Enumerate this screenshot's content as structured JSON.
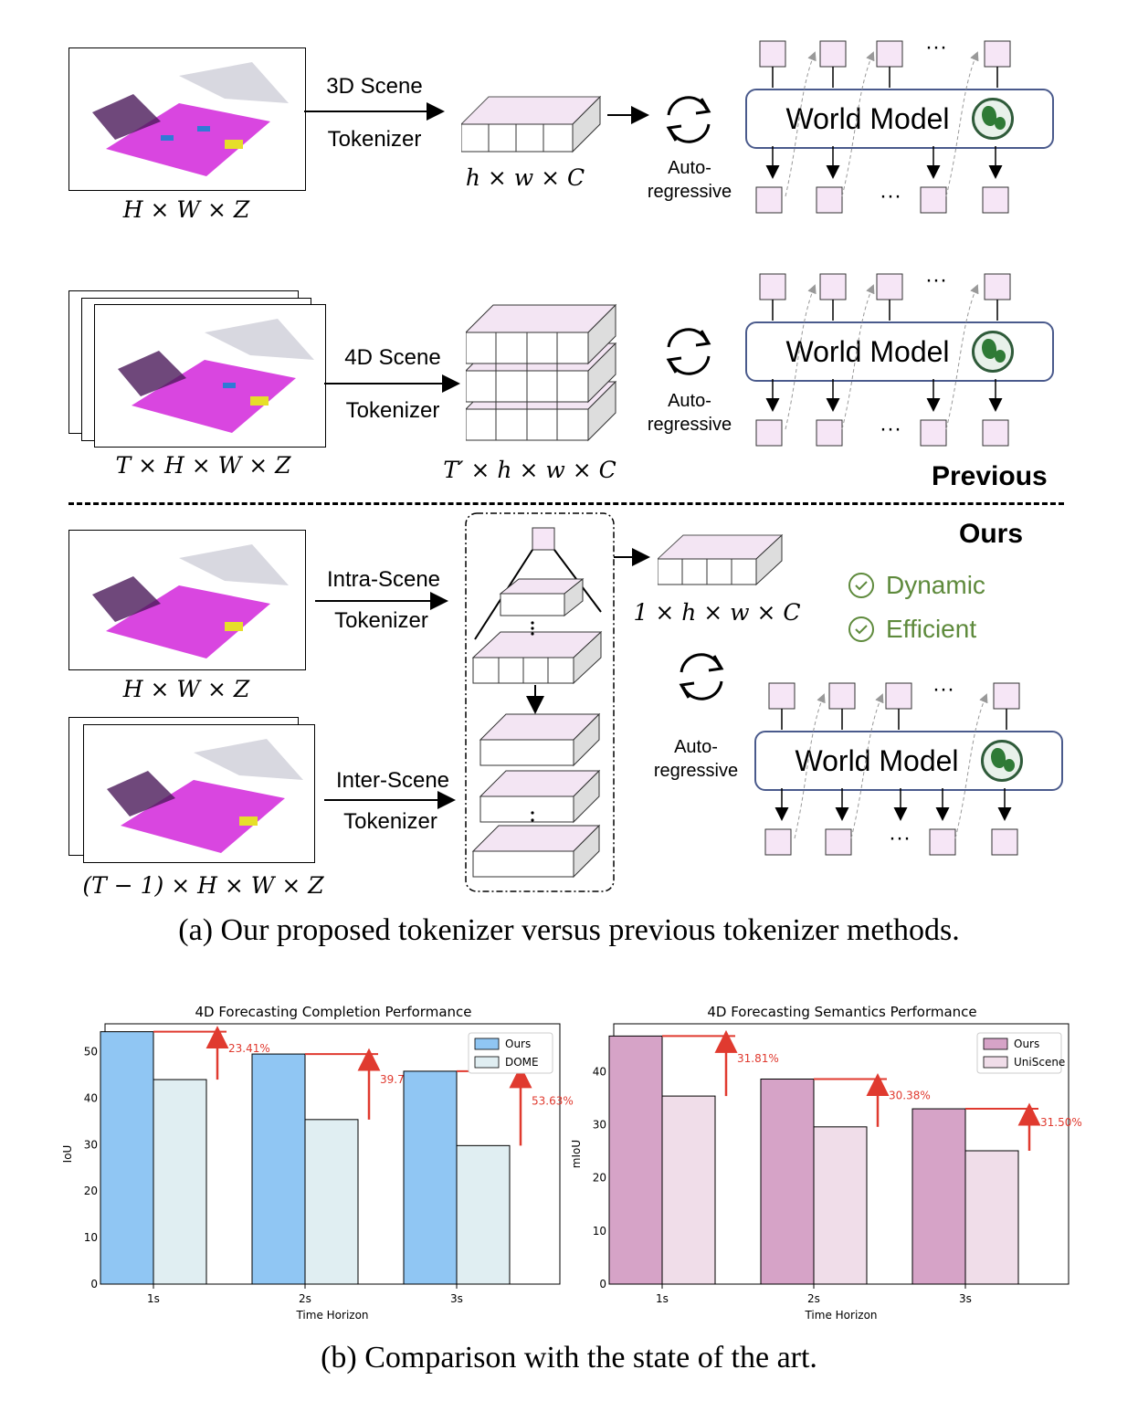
{
  "figure_a": {
    "row1": {
      "dims": "H × W × Z",
      "tokenizer_line1": "3D Scene",
      "tokenizer_line2": "Tokenizer",
      "token_dims": "h × w × C",
      "auto_line1": "Auto-",
      "auto_line2": "regressive",
      "world_model": "World Model",
      "dots": "···"
    },
    "row2": {
      "dims": "T × H × W × Z",
      "tokenizer_line1": "4D Scene",
      "tokenizer_line2": "Tokenizer",
      "token_dims": "T′ × h × w × C",
      "auto_line1": "Auto-",
      "auto_line2": "regressive",
      "world_model": "World Model",
      "dots": "···"
    },
    "previous_label": "Previous",
    "ours_label": "Ours",
    "ours": {
      "dims_top": "H × W × Z",
      "dims_bottom": "(T − 1) × H × W × Z",
      "intra_line1": "Intra-Scene",
      "intra_line2": "Tokenizer",
      "inter_line1": "Inter-Scene",
      "inter_line2": "Tokenizer",
      "token_dims": "1 × h × w × C",
      "feature1": "Dynamic",
      "feature2": "Efficient",
      "auto_line1": "Auto-",
      "auto_line2": "regressive",
      "world_model": "World Model",
      "dots": "···"
    },
    "caption": "(a) Our proposed tokenizer versus previous tokenizer methods."
  },
  "chart_data": [
    {
      "type": "bar",
      "title": "4D Forecasting Completion Performance",
      "xlabel": "Time Horizon",
      "ylabel": "IoU",
      "categories": [
        "1s",
        "2s",
        "3s"
      ],
      "ylim": [
        0,
        56
      ],
      "yticks": [
        0,
        10,
        20,
        30,
        40,
        50
      ],
      "series": [
        {
          "name": "Ours",
          "values": [
            54.3,
            49.5,
            45.8
          ],
          "color": "#90c6f3"
        },
        {
          "name": "DOME",
          "values": [
            44.0,
            35.4,
            29.8
          ],
          "color": "#e0eef2"
        }
      ],
      "annotations": [
        "23.41%",
        "39.79%",
        "53.63%"
      ],
      "legend": "top-right",
      "grid": false
    },
    {
      "type": "bar",
      "title": "4D Forecasting Semantics Performance",
      "xlabel": "Time Horizon",
      "ylabel": "mIoU",
      "categories": [
        "1s",
        "2s",
        "3s"
      ],
      "ylim": [
        0,
        49
      ],
      "yticks": [
        0,
        10,
        20,
        30,
        40
      ],
      "series": [
        {
          "name": "Ours",
          "values": [
            46.7,
            38.6,
            33.0
          ],
          "color": "#d6a3c7"
        },
        {
          "name": "UniScene",
          "values": [
            35.4,
            29.6,
            25.1
          ],
          "color": "#f0dde9"
        }
      ],
      "annotations": [
        "31.81%",
        "30.38%",
        "31.50%"
      ],
      "legend": "top-right",
      "grid": false
    }
  ],
  "caption_b": "(b) Comparison with the state of the art.",
  "colors": {
    "arrow_red": "#e03a2f",
    "border": "#000000",
    "world_model_border": "#4a5a8c",
    "check_green": "#5e8a3c"
  }
}
